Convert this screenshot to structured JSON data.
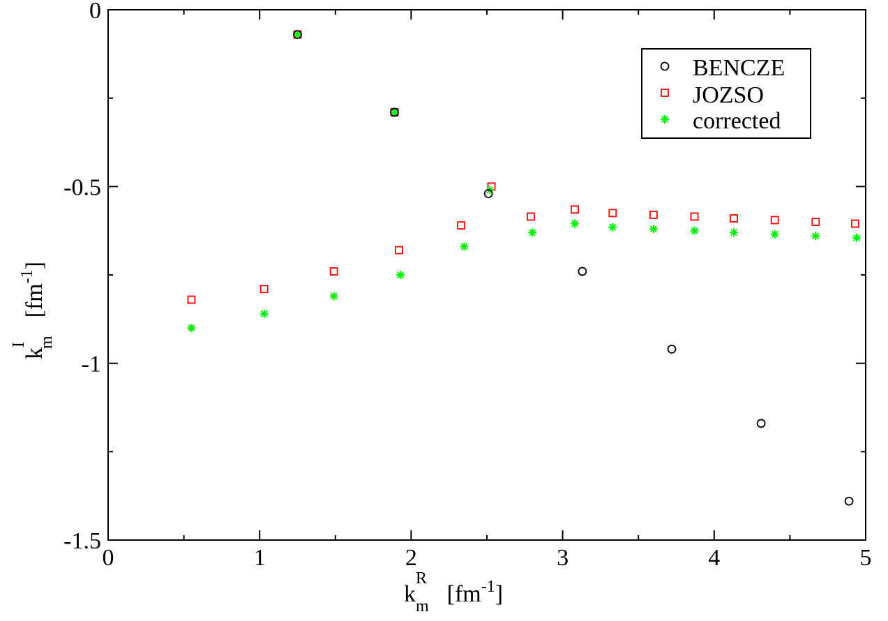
{
  "chart_data": {
    "type": "scatter",
    "title": "",
    "xlim": [
      0,
      5
    ],
    "ylim": [
      -1.5,
      0
    ],
    "x_ticks": [
      0,
      1,
      2,
      3,
      4,
      5
    ],
    "y_ticks": [
      0,
      -0.5,
      -1,
      -1.5
    ],
    "x_tick_labels": [
      "0",
      "1",
      "2",
      "3",
      "4",
      "5"
    ],
    "y_tick_labels": [
      "0",
      "-0.5",
      "-1",
      "-1.5"
    ],
    "xlabel": {
      "base": "k",
      "sup": "R",
      "sub": "m",
      "unit": "[fm",
      "unit_sup": "-1",
      "unit_end": "]"
    },
    "ylabel": {
      "base": "k",
      "sup": "I",
      "sub": "m",
      "unit": "[fm",
      "unit_sup": "-1",
      "unit_end": "]"
    },
    "grid": false,
    "legend_position": "top-right",
    "series": [
      {
        "name": "BENCZE",
        "marker": "circle",
        "color": "#000000",
        "x": [
          1.25,
          1.89,
          2.51,
          3.13,
          3.72,
          4.31,
          4.89
        ],
        "y": [
          -0.07,
          -0.29,
          -0.52,
          -0.74,
          -0.96,
          -1.17,
          -1.39
        ]
      },
      {
        "name": "JOZSO",
        "marker": "square",
        "color": "#ff0000",
        "x": [
          0.55,
          1.03,
          1.49,
          1.92,
          1.25,
          1.89,
          2.33,
          2.53,
          2.79,
          3.08,
          3.33,
          3.6,
          3.87,
          4.13,
          4.4,
          4.67,
          4.93
        ],
        "y": [
          -0.82,
          -0.79,
          -0.74,
          -0.68,
          -0.07,
          -0.29,
          -0.61,
          -0.5,
          -0.585,
          -0.565,
          -0.575,
          -0.58,
          -0.585,
          -0.59,
          -0.595,
          -0.6,
          -0.605
        ]
      },
      {
        "name": "corrected",
        "marker": "asterisk",
        "color": "#00ee00",
        "x": [
          0.55,
          1.03,
          1.49,
          1.93,
          1.25,
          1.89,
          2.35,
          2.52,
          2.8,
          3.08,
          3.33,
          3.6,
          3.87,
          4.13,
          4.4,
          4.67,
          4.94
        ],
        "y": [
          -0.9,
          -0.86,
          -0.81,
          -0.75,
          -0.07,
          -0.29,
          -0.67,
          -0.51,
          -0.63,
          -0.605,
          -0.615,
          -0.62,
          -0.625,
          -0.63,
          -0.635,
          -0.64,
          -0.645
        ]
      }
    ]
  }
}
